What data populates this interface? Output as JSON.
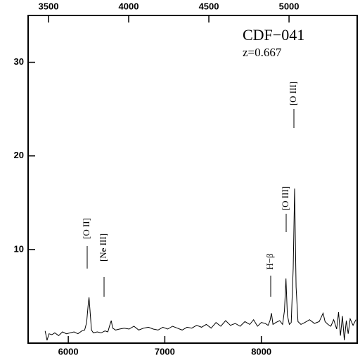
{
  "chart_data": {
    "type": "line",
    "x": [
      5760,
      5780,
      5800,
      5830,
      5860,
      5900,
      5940,
      5980,
      6020,
      6060,
      6100,
      6140,
      6170,
      6190,
      6205,
      6215,
      6225,
      6240,
      6260,
      6300,
      6340,
      6380,
      6410,
      6430,
      6445,
      6460,
      6490,
      6530,
      6580,
      6630,
      6680,
      6730,
      6780,
      6830,
      6880,
      6930,
      6980,
      7030,
      7080,
      7130,
      7180,
      7230,
      7280,
      7330,
      7380,
      7430,
      7480,
      7530,
      7580,
      7630,
      7680,
      7730,
      7780,
      7830,
      7880,
      7920,
      7960,
      8000,
      8040,
      8070,
      8090,
      8105,
      8120,
      8150,
      8190,
      8220,
      8240,
      8255,
      8270,
      8290,
      8310,
      8330,
      8345,
      8360,
      8380,
      8410,
      8450,
      8500,
      8550,
      8600,
      8640,
      8660,
      8690,
      8720,
      8750,
      8780,
      8800,
      8820,
      8840,
      8860,
      8880,
      8900,
      8920,
      8950,
      8980
    ],
    "series": [
      {
        "color": "#000000",
        "values": [
          1.3,
          0.3,
          1.0,
          0.9,
          1.1,
          0.8,
          1.2,
          1.0,
          1.1,
          1.2,
          1.0,
          1.3,
          1.4,
          2.2,
          4.0,
          4.9,
          3.5,
          1.4,
          1.1,
          1.2,
          1.1,
          1.3,
          1.2,
          1.9,
          2.4,
          1.6,
          1.4,
          1.5,
          1.6,
          1.5,
          1.8,
          1.4,
          1.6,
          1.7,
          1.5,
          1.4,
          1.7,
          1.5,
          1.8,
          1.6,
          1.4,
          1.7,
          1.6,
          1.9,
          1.7,
          2.0,
          1.6,
          2.2,
          1.8,
          2.4,
          1.9,
          2.1,
          1.8,
          2.3,
          2.0,
          2.5,
          1.8,
          2.2,
          2.1,
          1.9,
          2.4,
          3.2,
          2.0,
          2.2,
          2.4,
          2.0,
          3.5,
          6.9,
          3.0,
          2.0,
          2.2,
          8.0,
          16.5,
          6.0,
          2.3,
          2.0,
          2.2,
          2.5,
          2.1,
          2.3,
          3.2,
          2.3,
          2.0,
          1.8,
          2.5,
          1.5,
          3.3,
          0.8,
          2.9,
          0.3,
          2.4,
          1.0,
          2.6,
          1.9,
          2.5
        ]
      }
    ],
    "xlim": [
      5584,
      8993
    ],
    "xticks": [
      6000,
      7000,
      8000
    ],
    "x2lim": [
      3373,
      5425
    ],
    "x2ticks": [
      3500,
      4000,
      4500,
      5000
    ],
    "ylim": [
      0,
      35
    ],
    "yticks": [
      10,
      20,
      30
    ],
    "annotations": [
      "CDF−041",
      "z=0.667",
      "[O II]",
      "[Ne III]",
      "H−β",
      "[O III]",
      "[O III]"
    ]
  }
}
